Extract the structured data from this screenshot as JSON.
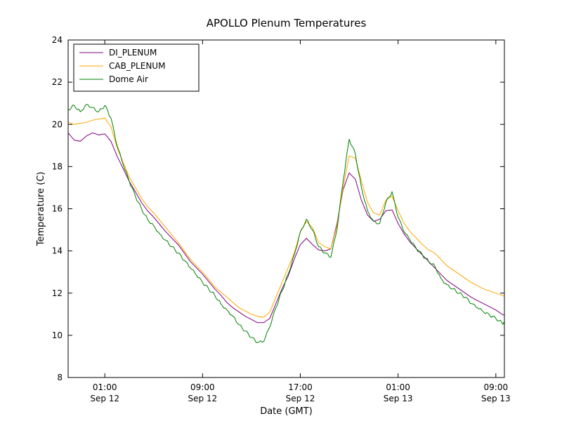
{
  "chart_data": {
    "type": "line",
    "title": "APOLLO Plenum Temperatures",
    "xlabel": "Date (GMT)",
    "ylabel": "Temperature (C)",
    "ylim": [
      8,
      24
    ],
    "yticks": [
      {
        "value": 8,
        "label": "8"
      },
      {
        "value": 10,
        "label": "10"
      },
      {
        "value": 12,
        "label": "12"
      },
      {
        "value": 14,
        "label": "14"
      },
      {
        "value": 16,
        "label": "16"
      },
      {
        "value": 18,
        "label": "18"
      },
      {
        "value": 20,
        "label": "20"
      },
      {
        "value": 22,
        "label": "22"
      },
      {
        "value": 24,
        "label": "24"
      }
    ],
    "xlim_hours": [
      0,
      35.7
    ],
    "xticks": [
      {
        "hours": 3,
        "label": "01:00",
        "sublabel": "Sep 12"
      },
      {
        "hours": 11,
        "label": "09:00",
        "sublabel": "Sep 12"
      },
      {
        "hours": 19,
        "label": "17:00",
        "sublabel": "Sep 12"
      },
      {
        "hours": 27,
        "label": "01:00",
        "sublabel": "Sep 13"
      },
      {
        "hours": 35,
        "label": "09:00",
        "sublabel": "Sep 13"
      }
    ],
    "grid": false,
    "legend_position": "upper left",
    "legend": [
      "DI_PLENUM",
      "CAB_PLENUM",
      "Dome Air"
    ],
    "x_hours": [
      0,
      0.5,
      1,
      1.5,
      2,
      2.5,
      3,
      3.5,
      4,
      4.5,
      5,
      5.5,
      6,
      6.5,
      7,
      7.5,
      8,
      8.5,
      9,
      9.5,
      10,
      10.5,
      11,
      11.5,
      12,
      12.5,
      13,
      13.5,
      14,
      14.5,
      15,
      15.5,
      16,
      16.5,
      17,
      17.5,
      18,
      18.5,
      19,
      19.5,
      20,
      20.5,
      21,
      21.5,
      22,
      22.5,
      23,
      23.5,
      24,
      24.5,
      25,
      25.5,
      26,
      26.5,
      27,
      27.5,
      28,
      28.5,
      29,
      29.5,
      30,
      30.5,
      31,
      31.5,
      32,
      32.5,
      33,
      33.5,
      34,
      34.5,
      35,
      35.5,
      35.7
    ],
    "series": [
      {
        "name": "DI_PLENUM",
        "color": "#800080",
        "noise": 0,
        "y": [
          19.6,
          19.25,
          19.2,
          19.45,
          19.6,
          19.5,
          19.55,
          19.2,
          18.5,
          17.9,
          17.3,
          16.8,
          16.3,
          15.9,
          15.6,
          15.25,
          14.9,
          14.6,
          14.3,
          13.9,
          13.5,
          13.2,
          12.9,
          12.55,
          12.2,
          11.9,
          11.55,
          11.3,
          11.1,
          10.9,
          10.75,
          10.6,
          10.6,
          10.8,
          11.5,
          12.2,
          12.8,
          13.6,
          14.3,
          14.6,
          14.3,
          14.05,
          14.0,
          14.1,
          15.3,
          16.9,
          17.7,
          17.4,
          16.4,
          15.7,
          15.4,
          15.5,
          15.9,
          15.95,
          15.3,
          14.8,
          14.4,
          14.1,
          13.8,
          13.5,
          13.2,
          12.9,
          12.6,
          12.4,
          12.2,
          12.0,
          11.8,
          11.65,
          11.5,
          11.35,
          11.2,
          11.0,
          10.95
        ]
      },
      {
        "name": "CAB_PLENUM",
        "color": "#ffa500",
        "noise": 0,
        "y": [
          20.1,
          20.0,
          20.05,
          20.1,
          20.2,
          20.25,
          20.3,
          19.9,
          18.9,
          18.2,
          17.5,
          17.0,
          16.5,
          16.1,
          15.8,
          15.45,
          15.1,
          14.75,
          14.4,
          14.0,
          13.6,
          13.3,
          13.0,
          12.65,
          12.3,
          12.05,
          11.8,
          11.55,
          11.3,
          11.15,
          11.0,
          10.9,
          10.85,
          11.1,
          11.8,
          12.5,
          13.2,
          13.9,
          14.9,
          15.4,
          15.1,
          14.4,
          14.2,
          14.1,
          15.2,
          17.0,
          18.5,
          18.4,
          17.3,
          16.3,
          15.8,
          15.7,
          16.4,
          16.6,
          15.9,
          15.3,
          14.9,
          14.6,
          14.3,
          14.05,
          13.9,
          13.6,
          13.3,
          13.1,
          12.9,
          12.7,
          12.5,
          12.35,
          12.2,
          12.1,
          12.0,
          11.9,
          11.85
        ]
      },
      {
        "name": "Dome Air",
        "color": "#008000",
        "noise": 0.07,
        "y": [
          20.7,
          20.9,
          20.6,
          20.95,
          20.8,
          20.6,
          20.9,
          20.3,
          19.0,
          18.1,
          17.3,
          16.6,
          16.0,
          15.5,
          15.2,
          14.8,
          14.5,
          14.2,
          13.9,
          13.55,
          13.2,
          12.85,
          12.5,
          12.2,
          11.9,
          11.5,
          11.2,
          10.9,
          10.5,
          10.2,
          9.9,
          9.65,
          9.7,
          10.4,
          11.3,
          12.1,
          12.9,
          13.8,
          14.9,
          15.5,
          15.0,
          14.2,
          13.9,
          13.7,
          15.0,
          17.3,
          19.3,
          18.6,
          17.0,
          15.9,
          15.4,
          15.3,
          16.3,
          16.8,
          15.6,
          14.9,
          14.5,
          14.1,
          13.8,
          13.5,
          13.3,
          12.7,
          12.4,
          12.2,
          12.0,
          11.8,
          11.5,
          11.3,
          11.1,
          10.95,
          10.8,
          10.6,
          10.55
        ]
      }
    ]
  }
}
